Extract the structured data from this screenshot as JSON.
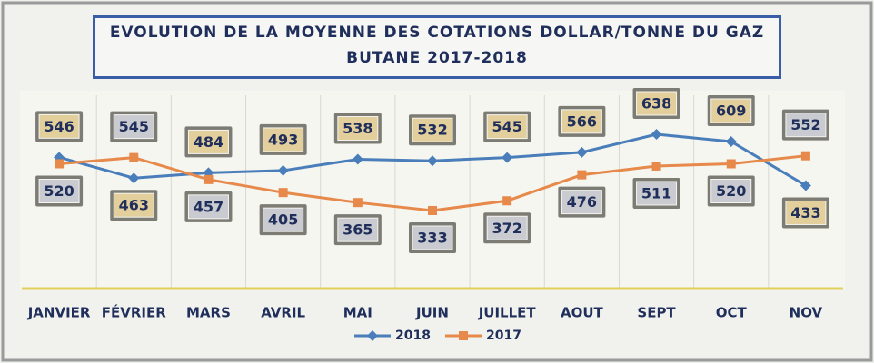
{
  "chart_data": {
    "type": "line",
    "title": "EVOLUTION DE LA MOYENNE DES COTATIONS DOLLAR/TONNE DU GAZ BUTANE 2017-2018",
    "categories": [
      "JANVIER",
      "FÉVRIER",
      "MARS",
      "AVRIL",
      "MAI",
      "JUIN",
      "JUILLET",
      "AOUT",
      "SEPT",
      "OCT",
      "NOV"
    ],
    "series": [
      {
        "name": "2018",
        "color": "#4a7ebb",
        "label_fill": "#e3cf9c",
        "marker": "diamond",
        "values": [
          546,
          463,
          484,
          493,
          538,
          532,
          545,
          566,
          638,
          609,
          433
        ]
      },
      {
        "name": "2017",
        "color": "#e6894a",
        "label_fill": "#c9cbd0",
        "marker": "square",
        "values": [
          520,
          545,
          457,
          405,
          365,
          333,
          372,
          476,
          511,
          520,
          552
        ]
      }
    ],
    "grid": true,
    "legend": "bottom"
  }
}
